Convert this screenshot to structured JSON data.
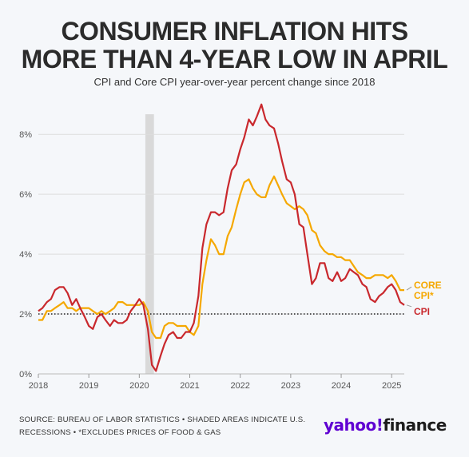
{
  "header": {
    "title_line1": "CONSUMER INFLATION HITS",
    "title_line2": "MORE THAN 4-YEAR LOW IN APRIL",
    "subtitle": "CPI and Core CPI year-over-year percent change since 2018"
  },
  "footer": {
    "source_line1": "SOURCE: BUREAU OF LABOR STATISTICS • SHADED AREAS INDICATE U.S.",
    "source_line2": "RECESSIONS • *EXCLUDES PRICES OF FOOD & GAS",
    "logo_part1": "yahoo!",
    "logo_part2": "finance"
  },
  "colors": {
    "cpi": "#c9282d",
    "core": "#f5a800",
    "recession": "#d9d9d9",
    "grid": "#dddddd",
    "axis_text": "#555555"
  },
  "chart_data": {
    "type": "line",
    "xlim": [
      2018.0,
      2025.25
    ],
    "ylim": [
      0,
      9.5
    ],
    "x_ticks": [
      2018,
      2019,
      2020,
      2021,
      2022,
      2023,
      2024,
      2025
    ],
    "x_tick_labels": [
      "2018",
      "2019",
      "2020",
      "2021",
      "2022",
      "2023",
      "2024",
      "2025"
    ],
    "y_ticks": [
      0,
      2,
      4,
      6,
      8
    ],
    "y_tick_labels": [
      "0%",
      "2%",
      "4%",
      "6%",
      "8%"
    ],
    "reference_line": 2,
    "recession": [
      2020.12,
      2020.29
    ],
    "grid": true,
    "series": [
      {
        "name": "CPI",
        "label": "CPI",
        "color": "#c9282d",
        "x": [
          2018.0,
          2018.08,
          2018.17,
          2018.25,
          2018.33,
          2018.42,
          2018.5,
          2018.58,
          2018.67,
          2018.75,
          2018.83,
          2018.92,
          2019.0,
          2019.08,
          2019.17,
          2019.25,
          2019.33,
          2019.42,
          2019.5,
          2019.58,
          2019.67,
          2019.75,
          2019.83,
          2019.92,
          2020.0,
          2020.08,
          2020.17,
          2020.25,
          2020.33,
          2020.42,
          2020.5,
          2020.58,
          2020.67,
          2020.75,
          2020.83,
          2020.92,
          2021.0,
          2021.08,
          2021.17,
          2021.25,
          2021.33,
          2021.42,
          2021.5,
          2021.58,
          2021.67,
          2021.75,
          2021.83,
          2021.92,
          2022.0,
          2022.08,
          2022.17,
          2022.25,
          2022.33,
          2022.42,
          2022.5,
          2022.58,
          2022.67,
          2022.75,
          2022.83,
          2022.92,
          2023.0,
          2023.08,
          2023.17,
          2023.25,
          2023.33,
          2023.42,
          2023.5,
          2023.58,
          2023.67,
          2023.75,
          2023.83,
          2023.92,
          2024.0,
          2024.08,
          2024.17,
          2024.25,
          2024.33,
          2024.42,
          2024.5,
          2024.58,
          2024.67,
          2024.75,
          2024.83,
          2024.92,
          2025.0,
          2025.08,
          2025.17,
          2025.25
        ],
        "y": [
          2.1,
          2.2,
          2.4,
          2.5,
          2.8,
          2.9,
          2.9,
          2.7,
          2.3,
          2.5,
          2.2,
          1.9,
          1.6,
          1.5,
          1.9,
          2.0,
          1.8,
          1.6,
          1.8,
          1.7,
          1.7,
          1.8,
          2.1,
          2.3,
          2.5,
          2.3,
          1.5,
          0.3,
          0.1,
          0.6,
          1.0,
          1.3,
          1.4,
          1.2,
          1.2,
          1.4,
          1.4,
          1.7,
          2.6,
          4.2,
          5.0,
          5.4,
          5.4,
          5.3,
          5.4,
          6.2,
          6.8,
          7.0,
          7.5,
          7.9,
          8.5,
          8.3,
          8.6,
          9.0,
          8.5,
          8.3,
          8.2,
          7.7,
          7.1,
          6.5,
          6.4,
          6.0,
          5.0,
          4.9,
          4.0,
          3.0,
          3.2,
          3.7,
          3.7,
          3.2,
          3.1,
          3.4,
          3.1,
          3.2,
          3.5,
          3.4,
          3.3,
          3.0,
          2.9,
          2.5,
          2.4,
          2.6,
          2.7,
          2.9,
          3.0,
          2.8,
          2.4,
          2.3
        ]
      },
      {
        "name": "CORE CPI*",
        "label": "CORE CPI*",
        "color": "#f5a800",
        "x": [
          2018.0,
          2018.08,
          2018.17,
          2018.25,
          2018.33,
          2018.42,
          2018.5,
          2018.58,
          2018.67,
          2018.75,
          2018.83,
          2018.92,
          2019.0,
          2019.08,
          2019.17,
          2019.25,
          2019.33,
          2019.42,
          2019.5,
          2019.58,
          2019.67,
          2019.75,
          2019.83,
          2019.92,
          2020.0,
          2020.08,
          2020.17,
          2020.25,
          2020.33,
          2020.42,
          2020.5,
          2020.58,
          2020.67,
          2020.75,
          2020.83,
          2020.92,
          2021.0,
          2021.08,
          2021.17,
          2021.25,
          2021.33,
          2021.42,
          2021.5,
          2021.58,
          2021.67,
          2021.75,
          2021.83,
          2021.92,
          2022.0,
          2022.08,
          2022.17,
          2022.25,
          2022.33,
          2022.42,
          2022.5,
          2022.58,
          2022.67,
          2022.75,
          2022.83,
          2022.92,
          2023.0,
          2023.08,
          2023.17,
          2023.25,
          2023.33,
          2023.42,
          2023.5,
          2023.58,
          2023.67,
          2023.75,
          2023.83,
          2023.92,
          2024.0,
          2024.08,
          2024.17,
          2024.25,
          2024.33,
          2024.42,
          2024.5,
          2024.58,
          2024.67,
          2024.75,
          2024.83,
          2024.92,
          2025.0,
          2025.08,
          2025.17,
          2025.25
        ],
        "y": [
          1.8,
          1.8,
          2.1,
          2.1,
          2.2,
          2.3,
          2.4,
          2.2,
          2.2,
          2.1,
          2.2,
          2.2,
          2.2,
          2.1,
          2.0,
          2.1,
          2.0,
          2.1,
          2.2,
          2.4,
          2.4,
          2.3,
          2.3,
          2.3,
          2.3,
          2.4,
          2.1,
          1.4,
          1.2,
          1.2,
          1.6,
          1.7,
          1.7,
          1.6,
          1.6,
          1.6,
          1.4,
          1.3,
          1.6,
          3.0,
          3.8,
          4.5,
          4.3,
          4.0,
          4.0,
          4.6,
          4.9,
          5.5,
          6.0,
          6.4,
          6.5,
          6.2,
          6.0,
          5.9,
          5.9,
          6.3,
          6.6,
          6.3,
          6.0,
          5.7,
          5.6,
          5.5,
          5.6,
          5.5,
          5.3,
          4.8,
          4.7,
          4.3,
          4.1,
          4.0,
          4.0,
          3.9,
          3.9,
          3.8,
          3.8,
          3.6,
          3.4,
          3.3,
          3.2,
          3.2,
          3.3,
          3.3,
          3.3,
          3.2,
          3.3,
          3.1,
          2.8,
          2.8
        ]
      }
    ]
  }
}
